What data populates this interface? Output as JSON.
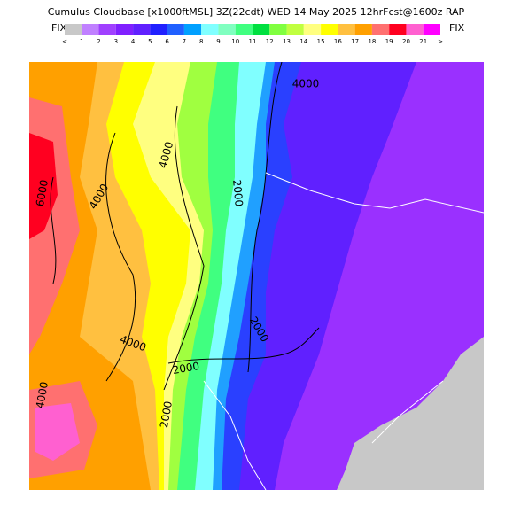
{
  "header": {
    "title": "Cumulus Cloudbase [x1000ftMSL] 3Z(22cdt) WED 14 May 2025 12hrFcst@1600z RAP",
    "fix_left": "FIX",
    "fix_right": "FIX"
  },
  "colorbar": {
    "labels": [
      "<",
      "1",
      "2",
      "3",
      "4",
      "5",
      "6",
      "7",
      "8",
      "9",
      "10",
      "11",
      "12",
      "13",
      "14",
      "15",
      "16",
      "17",
      "18",
      "19",
      "20",
      "21",
      ">"
    ],
    "colors": [
      "#c8c8c8",
      "#c080ff",
      "#a040ff",
      "#8020ff",
      "#6020ff",
      "#2020ff",
      "#2060ff",
      "#00a0ff",
      "#80ffff",
      "#80ffc0",
      "#40ff80",
      "#00e040",
      "#80ff40",
      "#c0ff40",
      "#ffff80",
      "#ffff00",
      "#ffc040",
      "#ffa000",
      "#ff7070",
      "#ff0020",
      "#ff60d0",
      "#ff00ff"
    ]
  },
  "map": {
    "contour_labels": [
      "6000",
      "4000",
      "4000",
      "2000",
      "2000",
      "2000",
      "4000",
      "4000",
      "2000",
      "4000"
    ]
  }
}
